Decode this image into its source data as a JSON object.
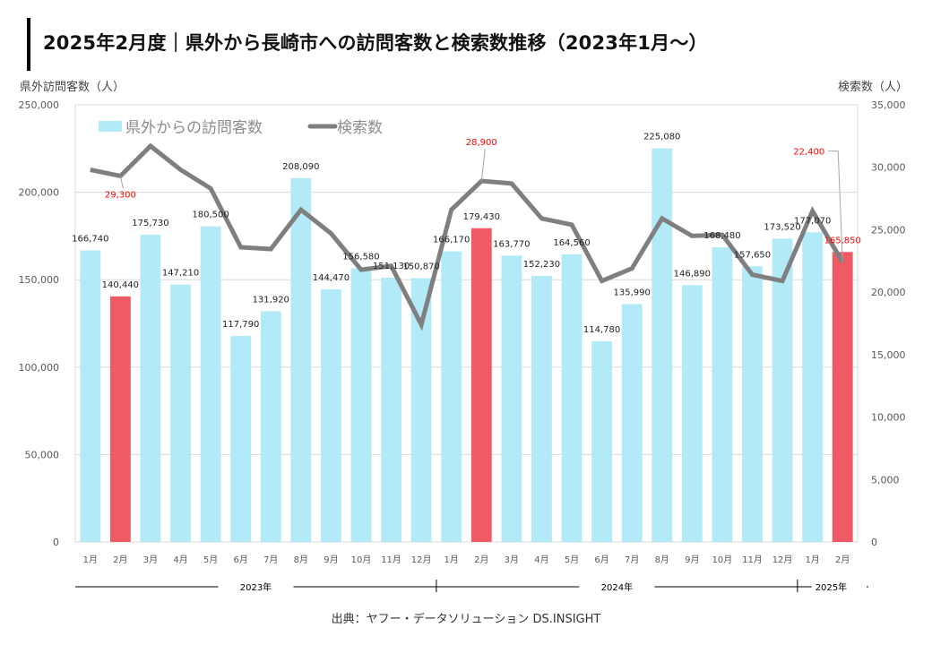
{
  "header": {
    "title": "2025年2月度｜県外から長崎市への訪問客数と検索数推移（2023年1月〜）"
  },
  "left_axis_label": "県外訪問客数（人）",
  "right_axis_label": "検索数（人）",
  "source": "出典：ヤフー・データソリューション DS.INSIGHT",
  "colors": {
    "bar": "#b3eaf7",
    "bar_highlight": "#f05a64",
    "line": "#7f7f7f",
    "grid": "#d9d9d9",
    "label_highlight": "#ff0000"
  },
  "chart_data": {
    "type": "bar",
    "title": "2025年2月度｜県外から長崎市への訪問客数と検索数推移（2023年1月〜）",
    "xlabel": "",
    "ylabel": "県外訪問客数（人）",
    "y2label": "検索数（人）",
    "ylim": [
      0,
      250000
    ],
    "y2lim": [
      0,
      35000
    ],
    "yticks": [
      "0",
      "50,000",
      "100,000",
      "150,000",
      "200,000",
      "250,000"
    ],
    "y2ticks": [
      "0",
      "5,000",
      "10,000",
      "15,000",
      "20,000",
      "25,000",
      "30,000",
      "35,000"
    ],
    "grid": true,
    "legend_position": "top-left",
    "categories": [
      "1月",
      "2月",
      "3月",
      "4月",
      "5月",
      "6月",
      "7月",
      "8月",
      "9月",
      "10月",
      "11月",
      "12月",
      "1月",
      "2月",
      "3月",
      "4月",
      "5月",
      "6月",
      "7月",
      "8月",
      "9月",
      "10月",
      "11月",
      "12月",
      "1月",
      "2月"
    ],
    "year_groups": [
      {
        "label": "2023年",
        "count": 12
      },
      {
        "label": "2024年",
        "count": 12
      },
      {
        "label": "2025年",
        "count": 2
      }
    ],
    "highlight_indices": [
      1,
      13,
      25
    ],
    "series": [
      {
        "name": "県外からの訪問客数",
        "type": "bar",
        "axis": "left",
        "values": [
          166740,
          140440,
          175730,
          147210,
          180500,
          117790,
          131920,
          208090,
          144470,
          156580,
          151130,
          150870,
          166170,
          179430,
          163770,
          152230,
          164560,
          114780,
          135990,
          225080,
          146890,
          168480,
          157650,
          173520,
          177070,
          165850
        ],
        "labels": [
          "166,740",
          "140,440",
          "175,730",
          "147,210",
          "180,500",
          "117,790",
          "131,920",
          "208,090",
          "144,470",
          "156,580",
          "151,130",
          "150,870",
          "166,170",
          "179,430",
          "163,770",
          "152,230",
          "164,560",
          "114,780",
          "135,990",
          "225,080",
          "146,890",
          "168,480",
          "157,650",
          "173,520",
          "177,070",
          "165,850"
        ]
      },
      {
        "name": "検索数",
        "type": "line",
        "axis": "right",
        "values": [
          29800,
          29300,
          31700,
          29800,
          28300,
          23600,
          23450,
          26600,
          24700,
          21800,
          22100,
          17400,
          26600,
          28900,
          28700,
          25900,
          25400,
          20900,
          21900,
          25900,
          24500,
          24600,
          21400,
          20900,
          26500,
          22400
        ],
        "labeled_points": [
          {
            "index": 1,
            "label": "29,300"
          },
          {
            "index": 13,
            "label": "28,900"
          },
          {
            "index": 25,
            "label": "22,400"
          }
        ]
      }
    ]
  }
}
